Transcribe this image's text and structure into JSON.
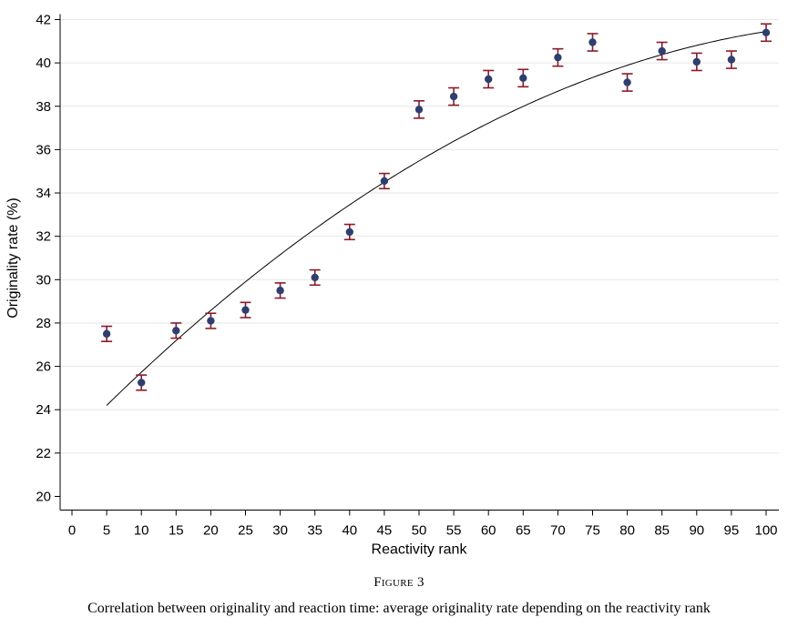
{
  "figure": {
    "label": "Figure 3",
    "caption": "Correlation between originality and reaction time: average originality rate depending on the reactivity rank"
  },
  "colors": {
    "marker": "#2e3f6e",
    "error_bar": "#8b1a2b",
    "fit_line": "#000000",
    "grid": "#e6e6e6"
  },
  "chart_data": {
    "type": "scatter",
    "xlabel": "Reactivity rank",
    "ylabel": "Originality rate (%)",
    "xlim": [
      0,
      100
    ],
    "ylim": [
      20,
      42
    ],
    "xticks": [
      0,
      5,
      10,
      15,
      20,
      25,
      30,
      35,
      40,
      45,
      50,
      55,
      60,
      65,
      70,
      75,
      80,
      85,
      90,
      95,
      100
    ],
    "yticks": [
      20,
      22,
      24,
      26,
      28,
      30,
      32,
      34,
      36,
      38,
      40,
      42
    ],
    "grid": "horizontal",
    "series": [
      {
        "x": [
          5,
          10,
          15,
          20,
          25,
          30,
          35,
          40,
          45,
          50,
          55,
          60,
          65,
          70,
          75,
          80,
          85,
          90,
          95,
          100
        ],
        "y": [
          27.5,
          25.25,
          27.65,
          28.1,
          28.6,
          29.5,
          30.1,
          32.2,
          34.55,
          37.85,
          38.45,
          39.25,
          39.3,
          40.25,
          40.95,
          39.1,
          40.55,
          40.05,
          40.15,
          41.4
        ],
        "error_low": [
          27.15,
          24.9,
          27.3,
          27.75,
          28.25,
          29.15,
          29.75,
          31.85,
          34.2,
          37.45,
          38.05,
          38.85,
          38.9,
          39.85,
          40.55,
          38.7,
          40.15,
          39.65,
          39.75,
          41.0
        ],
        "error_high": [
          27.85,
          25.6,
          28.0,
          28.45,
          28.95,
          29.85,
          30.45,
          32.55,
          34.9,
          38.25,
          38.85,
          39.65,
          39.7,
          40.65,
          41.35,
          39.5,
          40.95,
          40.45,
          40.55,
          41.8
        ]
      }
    ],
    "fit": {
      "type": "quadratic",
      "x_range": [
        5,
        100
      ],
      "points": [
        [
          5,
          24.2
        ],
        [
          45,
          34.5
        ],
        [
          100,
          41.45
        ]
      ]
    }
  }
}
